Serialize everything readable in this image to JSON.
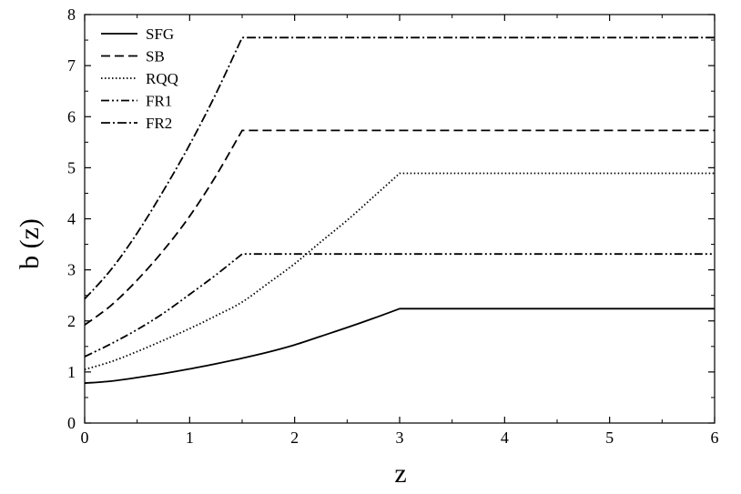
{
  "chart_data": {
    "type": "line",
    "xlabel": "z",
    "ylabel": "b (z)",
    "xlim": [
      0,
      6
    ],
    "ylim": [
      0,
      8
    ],
    "xticks": [
      "0",
      "1",
      "2",
      "3",
      "4",
      "5",
      "6"
    ],
    "yticks": [
      "0",
      "1",
      "2",
      "3",
      "4",
      "5",
      "6",
      "7",
      "8"
    ],
    "grid": false,
    "legend_position": "top-left",
    "series": [
      {
        "name": "SFG",
        "style": "solid",
        "x": [
          0,
          0.25,
          0.5,
          0.75,
          1.0,
          1.25,
          1.5,
          1.75,
          2.0,
          2.25,
          2.5,
          2.75,
          3.0,
          6.0
        ],
        "y": [
          0.78,
          0.82,
          0.89,
          0.97,
          1.06,
          1.16,
          1.27,
          1.39,
          1.53,
          1.7,
          1.87,
          2.05,
          2.24,
          2.24
        ]
      },
      {
        "name": "SB",
        "style": "dashed",
        "x": [
          0,
          0.25,
          0.5,
          0.75,
          1.0,
          1.25,
          1.5,
          6.0
        ],
        "y": [
          1.92,
          2.3,
          2.8,
          3.38,
          4.05,
          4.84,
          5.73,
          5.73
        ]
      },
      {
        "name": "RQQ",
        "style": "dotted",
        "x": [
          0,
          0.25,
          0.5,
          0.75,
          1.0,
          1.25,
          1.5,
          1.75,
          2.0,
          2.25,
          2.5,
          2.75,
          3.0,
          6.0
        ],
        "y": [
          1.05,
          1.2,
          1.4,
          1.62,
          1.85,
          2.1,
          2.37,
          2.74,
          3.12,
          3.55,
          3.97,
          4.43,
          4.89,
          4.89
        ]
      },
      {
        "name": "FR1",
        "style": "dash-dot-dot",
        "x": [
          0,
          0.25,
          0.5,
          0.75,
          1.0,
          1.25,
          1.5,
          6.0
        ],
        "y": [
          1.3,
          1.55,
          1.83,
          2.15,
          2.52,
          2.9,
          3.31,
          3.31
        ]
      },
      {
        "name": "FR2",
        "style": "dash-dot",
        "x": [
          0,
          0.25,
          0.5,
          0.75,
          1.0,
          1.25,
          1.5,
          6.0
        ],
        "y": [
          2.43,
          3.0,
          3.72,
          4.55,
          5.45,
          6.45,
          7.55,
          7.55
        ]
      }
    ]
  },
  "colors": {
    "line": "#000000",
    "axis": "#000000",
    "background": "#ffffff"
  }
}
